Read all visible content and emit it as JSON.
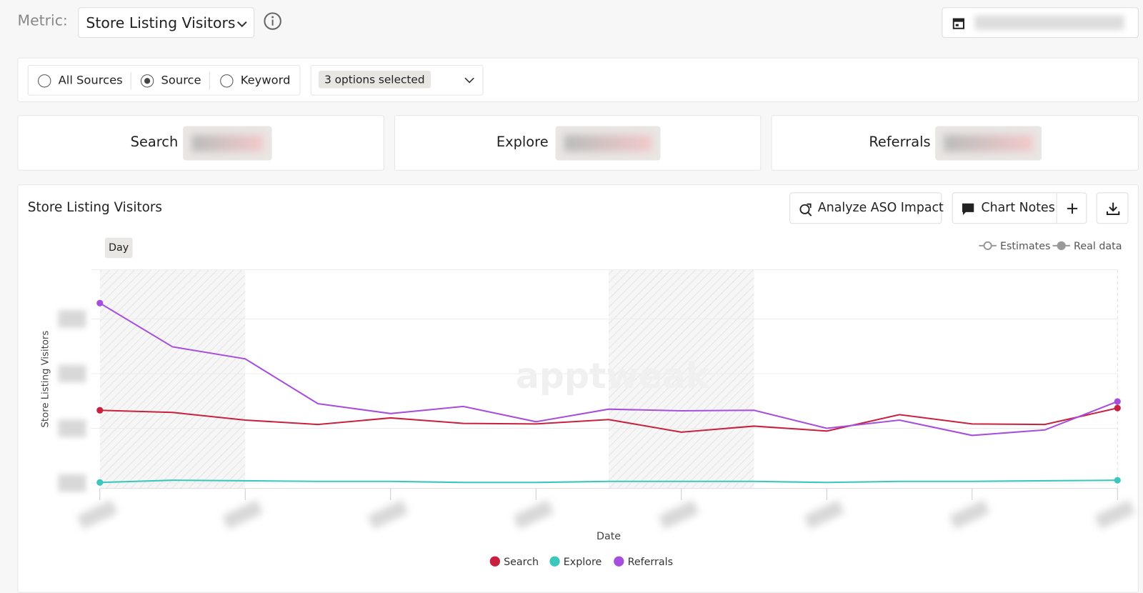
{
  "header": {
    "metric_label": "Metric:",
    "metric_value": "Store Listing Visitors"
  },
  "filters": {
    "options": [
      "All Sources",
      "Source",
      "Keyword"
    ],
    "multiselect": "3 options selected"
  },
  "cards": [
    "Search",
    "Explore",
    "Referrals"
  ],
  "chart_panel": {
    "title": "Store Listing Visitors",
    "buttons": [
      "Analyze ASO Impact",
      "Chart Notes"
    ],
    "granularity": "Day",
    "data_kinds": [
      "Estimates",
      "Real data"
    ],
    "watermark": "apptweak"
  },
  "chart_data": {
    "type": "line",
    "y_label": "Store Listing Visitors",
    "x_label": "Date",
    "categories": [
      null,
      null,
      null,
      null,
      null,
      null,
      null,
      null,
      null,
      null,
      null,
      null,
      null,
      null,
      null
    ],
    "ylim": [
      -0.1,
      3.9
    ],
    "yticks": [
      0,
      1,
      2,
      3
    ],
    "grid": true,
    "series": [
      {
        "name": "Search",
        "color": "#c8213f",
        "values": [
          1.33,
          1.29,
          1.15,
          1.07,
          1.19,
          1.09,
          1.08,
          1.16,
          0.93,
          1.04,
          0.95,
          1.25,
          1.08,
          1.07,
          1.37
        ]
      },
      {
        "name": "Explore",
        "color": "#3cc7bd",
        "values": [
          0.01,
          0.05,
          0.04,
          0.03,
          0.03,
          0.01,
          0.01,
          0.03,
          0.03,
          0.03,
          0.01,
          0.03,
          0.03,
          0.04,
          0.05
        ]
      },
      {
        "name": "Referrals",
        "color": "#a64fdc",
        "values": [
          3.29,
          2.49,
          2.27,
          1.45,
          1.27,
          1.4,
          1.12,
          1.35,
          1.32,
          1.33,
          1.0,
          1.15,
          0.87,
          0.97,
          1.49
        ]
      }
    ]
  }
}
